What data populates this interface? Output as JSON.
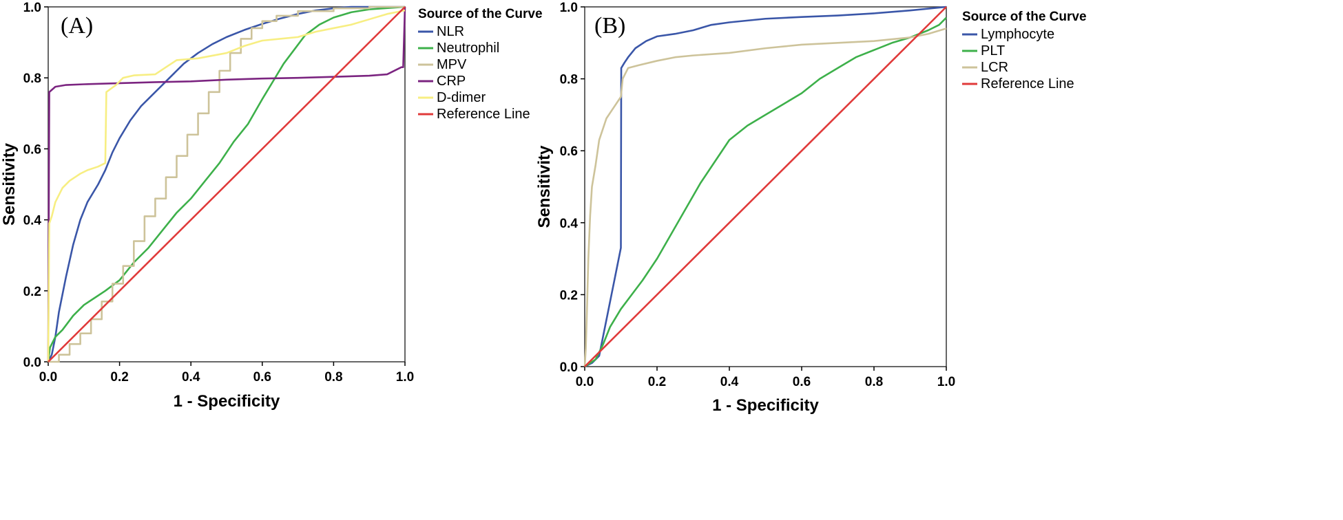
{
  "colors": {
    "blue": "#3a56a8",
    "green": "#3db04a",
    "tan": "#cdc39a",
    "purple": "#7b2480",
    "yellow": "#f7ee82",
    "red": "#e03a3a"
  },
  "chart_data": [
    {
      "type": "line",
      "panel_label": "(A)",
      "title": "",
      "xlabel": "1 - Specificity",
      "ylabel": "Sensitivity",
      "xlim": [
        0,
        1
      ],
      "ylim": [
        0,
        1
      ],
      "x_ticks": [
        "0.0",
        "0.2",
        "0.4",
        "0.6",
        "0.8",
        "1.0"
      ],
      "y_ticks": [
        "0.0",
        "0.2",
        "0.4",
        "0.6",
        "0.8",
        "1.0"
      ],
      "grid": false,
      "legend_title": "Source of the Curve",
      "legend_position": "right",
      "series": [
        {
          "name": "NLR",
          "color": "#3a56a8",
          "step": false,
          "points": [
            [
              0,
              0
            ],
            [
              0.01,
              0.02
            ],
            [
              0.02,
              0.07
            ],
            [
              0.03,
              0.14
            ],
            [
              0.05,
              0.24
            ],
            [
              0.07,
              0.33
            ],
            [
              0.09,
              0.4
            ],
            [
              0.11,
              0.45
            ],
            [
              0.14,
              0.5
            ],
            [
              0.16,
              0.54
            ],
            [
              0.18,
              0.59
            ],
            [
              0.2,
              0.63
            ],
            [
              0.23,
              0.68
            ],
            [
              0.26,
              0.72
            ],
            [
              0.3,
              0.76
            ],
            [
              0.34,
              0.8
            ],
            [
              0.38,
              0.84
            ],
            [
              0.42,
              0.87
            ],
            [
              0.46,
              0.895
            ],
            [
              0.5,
              0.915
            ],
            [
              0.55,
              0.935
            ],
            [
              0.6,
              0.952
            ],
            [
              0.65,
              0.967
            ],
            [
              0.7,
              0.98
            ],
            [
              0.75,
              0.99
            ],
            [
              0.8,
              0.996
            ],
            [
              0.85,
              1.0
            ],
            [
              1.0,
              1.0
            ]
          ]
        },
        {
          "name": "Neutrophil",
          "color": "#3db04a",
          "step": false,
          "points": [
            [
              0,
              0
            ],
            [
              0.005,
              0.04
            ],
            [
              0.02,
              0.07
            ],
            [
              0.04,
              0.09
            ],
            [
              0.07,
              0.13
            ],
            [
              0.1,
              0.16
            ],
            [
              0.13,
              0.18
            ],
            [
              0.16,
              0.2
            ],
            [
              0.2,
              0.23
            ],
            [
              0.24,
              0.28
            ],
            [
              0.28,
              0.32
            ],
            [
              0.32,
              0.37
            ],
            [
              0.36,
              0.42
            ],
            [
              0.4,
              0.46
            ],
            [
              0.44,
              0.51
            ],
            [
              0.48,
              0.56
            ],
            [
              0.52,
              0.62
            ],
            [
              0.56,
              0.67
            ],
            [
              0.6,
              0.74
            ],
            [
              0.63,
              0.79
            ],
            [
              0.66,
              0.84
            ],
            [
              0.69,
              0.88
            ],
            [
              0.72,
              0.92
            ],
            [
              0.76,
              0.95
            ],
            [
              0.8,
              0.97
            ],
            [
              0.85,
              0.985
            ],
            [
              0.9,
              0.993
            ],
            [
              1.0,
              1.0
            ]
          ]
        },
        {
          "name": "MPV",
          "color": "#cdc39a",
          "step": true,
          "points": [
            [
              0,
              0
            ],
            [
              0.03,
              0.02
            ],
            [
              0.06,
              0.05
            ],
            [
              0.09,
              0.08
            ],
            [
              0.12,
              0.12
            ],
            [
              0.15,
              0.17
            ],
            [
              0.18,
              0.22
            ],
            [
              0.21,
              0.27
            ],
            [
              0.24,
              0.34
            ],
            [
              0.27,
              0.41
            ],
            [
              0.3,
              0.46
            ],
            [
              0.33,
              0.52
            ],
            [
              0.36,
              0.58
            ],
            [
              0.39,
              0.64
            ],
            [
              0.42,
              0.7
            ],
            [
              0.45,
              0.76
            ],
            [
              0.48,
              0.82
            ],
            [
              0.51,
              0.87
            ],
            [
              0.54,
              0.91
            ],
            [
              0.57,
              0.94
            ],
            [
              0.6,
              0.96
            ],
            [
              0.64,
              0.975
            ],
            [
              0.7,
              0.988
            ],
            [
              0.8,
              0.996
            ],
            [
              0.9,
              1.0
            ],
            [
              1.0,
              1.0
            ]
          ]
        },
        {
          "name": "CRP",
          "color": "#7b2480",
          "step": false,
          "points": [
            [
              0,
              0
            ],
            [
              0.003,
              0.76
            ],
            [
              0.02,
              0.775
            ],
            [
              0.05,
              0.78
            ],
            [
              0.1,
              0.782
            ],
            [
              0.2,
              0.785
            ],
            [
              0.3,
              0.788
            ],
            [
              0.4,
              0.79
            ],
            [
              0.5,
              0.795
            ],
            [
              0.6,
              0.798
            ],
            [
              0.7,
              0.8
            ],
            [
              0.8,
              0.803
            ],
            [
              0.9,
              0.806
            ],
            [
              0.95,
              0.81
            ],
            [
              0.99,
              0.83
            ],
            [
              0.995,
              0.83
            ],
            [
              1.0,
              1.0
            ]
          ]
        },
        {
          "name": "D-dimer",
          "color": "#f7ee82",
          "step": false,
          "points": [
            [
              0,
              0
            ],
            [
              0.003,
              0.39
            ],
            [
              0.01,
              0.41
            ],
            [
              0.02,
              0.45
            ],
            [
              0.04,
              0.49
            ],
            [
              0.06,
              0.51
            ],
            [
              0.09,
              0.53
            ],
            [
              0.11,
              0.54
            ],
            [
              0.14,
              0.55
            ],
            [
              0.16,
              0.56
            ],
            [
              0.163,
              0.76
            ],
            [
              0.19,
              0.78
            ],
            [
              0.21,
              0.8
            ],
            [
              0.24,
              0.807
            ],
            [
              0.3,
              0.81
            ],
            [
              0.33,
              0.83
            ],
            [
              0.36,
              0.85
            ],
            [
              0.42,
              0.855
            ],
            [
              0.5,
              0.87
            ],
            [
              0.55,
              0.89
            ],
            [
              0.6,
              0.905
            ],
            [
              0.65,
              0.91
            ],
            [
              0.7,
              0.915
            ],
            [
              0.75,
              0.93
            ],
            [
              0.8,
              0.94
            ],
            [
              0.85,
              0.95
            ],
            [
              0.9,
              0.965
            ],
            [
              0.95,
              0.98
            ],
            [
              1.0,
              0.99
            ]
          ]
        },
        {
          "name": "Reference Line",
          "color": "#e03a3a",
          "step": false,
          "points": [
            [
              0,
              0
            ],
            [
              1,
              1
            ]
          ]
        }
      ]
    },
    {
      "type": "line",
      "panel_label": "(B)",
      "title": "",
      "xlabel": "1 - Specificity",
      "ylabel": "Sensitivity",
      "xlim": [
        0,
        1
      ],
      "ylim": [
        0,
        1
      ],
      "x_ticks": [
        "0.0",
        "0.2",
        "0.4",
        "0.6",
        "0.8",
        "1.0"
      ],
      "y_ticks": [
        "0.0",
        "0.2",
        "0.4",
        "0.6",
        "0.8",
        "1.0"
      ],
      "grid": false,
      "legend_title": "Source of the Curve",
      "legend_position": "right",
      "series": [
        {
          "name": "Lymphocyte",
          "color": "#3a56a8",
          "step": false,
          "points": [
            [
              0,
              0
            ],
            [
              0.02,
              0.01
            ],
            [
              0.04,
              0.03
            ],
            [
              0.05,
              0.08
            ],
            [
              0.06,
              0.13
            ],
            [
              0.07,
              0.18
            ],
            [
              0.08,
              0.23
            ],
            [
              0.09,
              0.28
            ],
            [
              0.098,
              0.32
            ],
            [
              0.1,
              0.33
            ],
            [
              0.101,
              0.83
            ],
            [
              0.11,
              0.845
            ],
            [
              0.12,
              0.86
            ],
            [
              0.14,
              0.885
            ],
            [
              0.17,
              0.905
            ],
            [
              0.2,
              0.918
            ],
            [
              0.25,
              0.925
            ],
            [
              0.3,
              0.935
            ],
            [
              0.35,
              0.95
            ],
            [
              0.4,
              0.957
            ],
            [
              0.5,
              0.967
            ],
            [
              0.6,
              0.972
            ],
            [
              0.7,
              0.976
            ],
            [
              0.8,
              0.982
            ],
            [
              0.9,
              0.99
            ],
            [
              1.0,
              1.0
            ]
          ]
        },
        {
          "name": "PLT",
          "color": "#3db04a",
          "step": false,
          "points": [
            [
              0,
              0
            ],
            [
              0.03,
              0.02
            ],
            [
              0.05,
              0.06
            ],
            [
              0.07,
              0.11
            ],
            [
              0.1,
              0.16
            ],
            [
              0.13,
              0.2
            ],
            [
              0.16,
              0.24
            ],
            [
              0.2,
              0.3
            ],
            [
              0.24,
              0.37
            ],
            [
              0.28,
              0.44
            ],
            [
              0.32,
              0.51
            ],
            [
              0.36,
              0.57
            ],
            [
              0.4,
              0.63
            ],
            [
              0.45,
              0.67
            ],
            [
              0.5,
              0.7
            ],
            [
              0.55,
              0.73
            ],
            [
              0.6,
              0.76
            ],
            [
              0.65,
              0.8
            ],
            [
              0.7,
              0.83
            ],
            [
              0.75,
              0.86
            ],
            [
              0.8,
              0.88
            ],
            [
              0.85,
              0.9
            ],
            [
              0.9,
              0.915
            ],
            [
              0.95,
              0.935
            ],
            [
              0.98,
              0.95
            ],
            [
              1.0,
              0.97
            ]
          ]
        },
        {
          "name": "LCR",
          "color": "#cdc39a",
          "step": false,
          "points": [
            [
              0,
              0
            ],
            [
              0.003,
              0.05
            ],
            [
              0.006,
              0.15
            ],
            [
              0.01,
              0.3
            ],
            [
              0.015,
              0.42
            ],
            [
              0.02,
              0.5
            ],
            [
              0.03,
              0.56
            ],
            [
              0.04,
              0.63
            ],
            [
              0.06,
              0.69
            ],
            [
              0.08,
              0.72
            ],
            [
              0.1,
              0.75
            ],
            [
              0.105,
              0.8
            ],
            [
              0.12,
              0.83
            ],
            [
              0.15,
              0.838
            ],
            [
              0.2,
              0.85
            ],
            [
              0.25,
              0.86
            ],
            [
              0.3,
              0.865
            ],
            [
              0.4,
              0.872
            ],
            [
              0.5,
              0.885
            ],
            [
              0.6,
              0.895
            ],
            [
              0.7,
              0.9
            ],
            [
              0.8,
              0.905
            ],
            [
              0.9,
              0.915
            ],
            [
              0.95,
              0.925
            ],
            [
              1.0,
              0.94
            ]
          ]
        },
        {
          "name": "Reference Line",
          "color": "#e03a3a",
          "step": false,
          "points": [
            [
              0,
              0
            ],
            [
              1,
              1
            ]
          ]
        }
      ]
    }
  ]
}
